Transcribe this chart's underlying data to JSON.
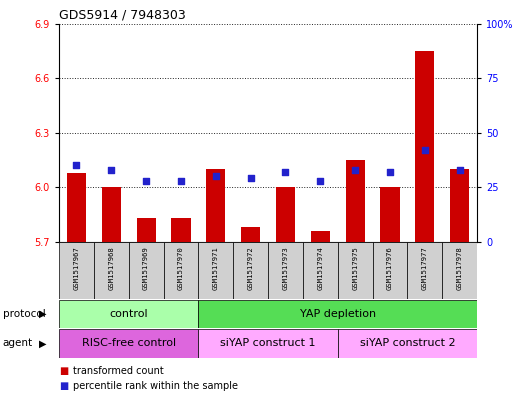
{
  "title": "GDS5914 / 7948303",
  "samples": [
    "GSM1517967",
    "GSM1517968",
    "GSM1517969",
    "GSM1517970",
    "GSM1517971",
    "GSM1517972",
    "GSM1517973",
    "GSM1517974",
    "GSM1517975",
    "GSM1517976",
    "GSM1517977",
    "GSM1517978"
  ],
  "transformed_counts": [
    6.08,
    6.0,
    5.83,
    5.83,
    6.1,
    5.78,
    6.0,
    5.76,
    6.15,
    6.0,
    6.75,
    6.1
  ],
  "percentile_ranks": [
    35,
    33,
    28,
    28,
    30,
    29,
    32,
    28,
    33,
    32,
    42,
    33
  ],
  "ylim_left": [
    5.7,
    6.9
  ],
  "ylim_right": [
    0,
    100
  ],
  "yticks_left": [
    5.7,
    6.0,
    6.3,
    6.6,
    6.9
  ],
  "yticks_right": [
    0,
    25,
    50,
    75,
    100
  ],
  "ytick_right_labels": [
    "0",
    "25",
    "50",
    "75",
    "100%"
  ],
  "bar_color": "#cc0000",
  "dot_color": "#2222cc",
  "bar_bottom": 5.7,
  "protocol_groups": [
    {
      "label": "control",
      "start": 0,
      "end": 4,
      "color": "#aaffaa"
    },
    {
      "label": "YAP depletion",
      "start": 4,
      "end": 12,
      "color": "#55dd55"
    }
  ],
  "agent_groups": [
    {
      "label": "RISC-free control",
      "start": 0,
      "end": 4,
      "color": "#dd66dd"
    },
    {
      "label": "siYAP construct 1",
      "start": 4,
      "end": 8,
      "color": "#ffaaff"
    },
    {
      "label": "siYAP construct 2",
      "start": 8,
      "end": 12,
      "color": "#ffaaff"
    }
  ],
  "legend_items": [
    {
      "label": "transformed count",
      "color": "#cc0000"
    },
    {
      "label": "percentile rank within the sample",
      "color": "#2222cc"
    }
  ],
  "grid_color": "#222222",
  "bg_color": "#ffffff",
  "chart_bg": "#ffffff",
  "label_protocol": "protocol",
  "label_agent": "agent",
  "sample_bg": "#d0d0d0"
}
